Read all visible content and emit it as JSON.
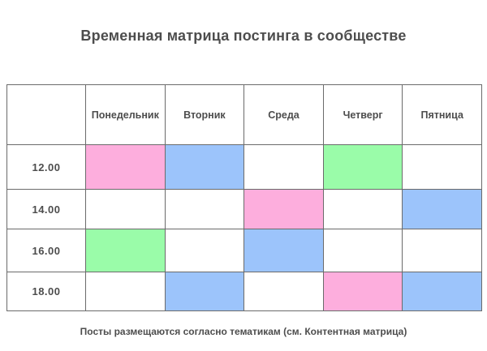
{
  "page": {
    "title": "Временная матрица постинга в сообществе",
    "footer_note": "Посты размещаются согласно тематикам (см. Контентная матрица)"
  },
  "colors": {
    "pink": "#fdaedd",
    "blue": "#9cc4fb",
    "green": "#9afca9",
    "cell_default": "#ffffff",
    "text": "#4d4d4d",
    "border": "#6b6b6b"
  },
  "table": {
    "corner_label": "",
    "day_headers": [
      "Понедельник",
      "Вторник",
      "Среда",
      "Четверг",
      "Пятница"
    ],
    "rows": [
      {
        "time": "12.00",
        "cells": [
          "pink",
          "blue",
          "none",
          "green",
          "none"
        ]
      },
      {
        "time": "14.00",
        "cells": [
          "none",
          "none",
          "pink",
          "none",
          "blue"
        ]
      },
      {
        "time": "16.00",
        "cells": [
          "green",
          "none",
          "blue",
          "none",
          "none"
        ]
      },
      {
        "time": "18.00",
        "cells": [
          "none",
          "blue",
          "none",
          "pink",
          "blue"
        ]
      }
    ]
  },
  "chart_data": {
    "type": "heatmap",
    "title": "Временная матрица постинга в сообществе",
    "x_categories": [
      "Понедельник",
      "Вторник",
      "Среда",
      "Четверг",
      "Пятница"
    ],
    "y_categories": [
      "12.00",
      "14.00",
      "16.00",
      "18.00"
    ],
    "values": [
      [
        "pink",
        "blue",
        null,
        "green",
        null
      ],
      [
        null,
        null,
        "pink",
        null,
        "blue"
      ],
      [
        "green",
        null,
        "blue",
        null,
        null
      ],
      [
        null,
        "blue",
        null,
        "pink",
        "blue"
      ]
    ],
    "color_map": {
      "pink": "#fdaedd",
      "blue": "#9cc4fb",
      "green": "#9afca9"
    },
    "note": "Посты размещаются согласно тематикам (см. Контентная матрица)"
  }
}
